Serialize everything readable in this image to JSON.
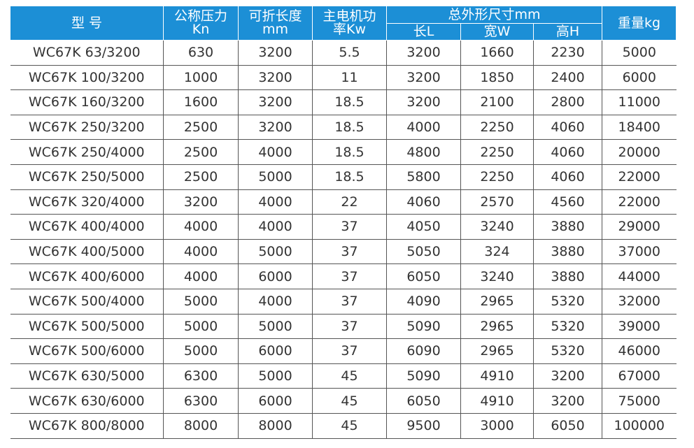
{
  "table": {
    "header": {
      "model": "型 号",
      "force": [
        "公称压力",
        "Kn"
      ],
      "length": [
        "可折长度",
        "mm"
      ],
      "motor": [
        "主电机功",
        "率Kw"
      ],
      "size": "总外形尺寸mm",
      "size_sub": [
        "长L",
        "宽W",
        "高H"
      ],
      "weight": "重量kg"
    },
    "rows": [
      [
        "WC67K 63/3200",
        630,
        3200,
        5.5,
        3200,
        1660,
        2230,
        5000
      ],
      [
        "WC67K 100/3200",
        1000,
        3200,
        11,
        3200,
        1850,
        2400,
        6000
      ],
      [
        "WC67K 160/3200",
        1600,
        3200,
        18.5,
        3200,
        2100,
        2800,
        11000
      ],
      [
        "WC67K 250/3200",
        2500,
        3200,
        18.5,
        4000,
        2250,
        4060,
        18400
      ],
      [
        "WC67K 250/4000",
        2500,
        4000,
        18.5,
        4800,
        2250,
        4060,
        20000
      ],
      [
        "WC67K 250/5000",
        2500,
        5000,
        18.5,
        5800,
        2250,
        4060,
        22000
      ],
      [
        "WC67K 320/4000",
        3200,
        4000,
        22,
        4060,
        2570,
        4560,
        22000
      ],
      [
        "WC67K 400/4000",
        4000,
        4000,
        37,
        4050,
        3240,
        3880,
        29000
      ],
      [
        "WC67K 400/5000",
        4000,
        5000,
        37,
        5050,
        324,
        3880,
        37000
      ],
      [
        "WC67K 400/6000",
        4000,
        6000,
        37,
        6050,
        3240,
        3880,
        44000
      ],
      [
        "WC67K 500/4000",
        5000,
        4000,
        37,
        4090,
        2965,
        5320,
        32000
      ],
      [
        "WC67K 500/5000",
        5000,
        5000,
        37,
        5090,
        2965,
        5320,
        39000
      ],
      [
        "WC67K 500/6000",
        5000,
        6000,
        37,
        6090,
        2965,
        5320,
        46000
      ],
      [
        "WC67K 630/5000",
        6300,
        5000,
        45,
        5090,
        4910,
        3200,
        67000
      ],
      [
        "WC67K 630/6000",
        6300,
        6000,
        45,
        6050,
        4910,
        3200,
        75000
      ],
      [
        "WC67K 800/8000",
        8000,
        8000,
        45,
        9500,
        3000,
        6050,
        100000
      ]
    ]
  }
}
